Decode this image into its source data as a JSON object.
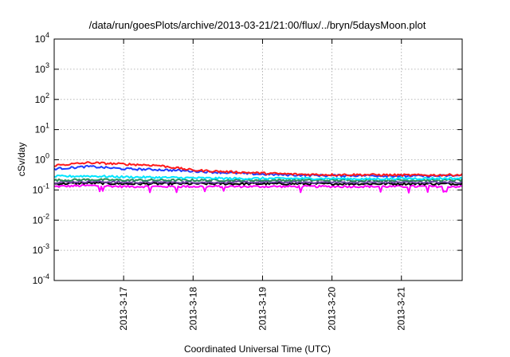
{
  "chart_data": {
    "type": "line",
    "title": "/data/run/goesPlots/archive/2013-03-21/21:00/flux/../bryn/5daysMoon.plot",
    "xlabel": "Coordinated Universal Time (UTC)",
    "ylabel": "cSv/day",
    "yscale": "log",
    "ylim": [
      0.0001,
      10000
    ],
    "xlim": [
      "2013-03-16 00:00",
      "2013-03-21 21:00"
    ],
    "y_ticks": [
      {
        "base": "10",
        "exp": "4",
        "value": 10000
      },
      {
        "base": "10",
        "exp": "3",
        "value": 1000
      },
      {
        "base": "10",
        "exp": "2",
        "value": 100
      },
      {
        "base": "10",
        "exp": "1",
        "value": 10
      },
      {
        "base": "10",
        "exp": "0",
        "value": 1
      },
      {
        "base": "10",
        "exp": "-1",
        "value": 0.1
      },
      {
        "base": "10",
        "exp": "-2",
        "value": 0.01
      },
      {
        "base": "10",
        "exp": "-3",
        "value": 0.001
      },
      {
        "base": "10",
        "exp": "-4",
        "value": 0.0001
      }
    ],
    "x_ticks": [
      {
        "label": "2013-3-17",
        "date": "2013-03-17"
      },
      {
        "label": "2013-3-18",
        "date": "2013-03-18"
      },
      {
        "label": "2013-3-19",
        "date": "2013-03-19"
      },
      {
        "label": "2013-3-20",
        "date": "2013-03-20"
      },
      {
        "label": "2013-3-21",
        "date": "2013-03-21"
      }
    ],
    "grid": true,
    "legend": "none",
    "series": [
      {
        "color": "#ff00ff",
        "x": [
          "2013-03-16 00:00",
          "2013-03-16 12:00",
          "2013-03-17 00:00",
          "2013-03-17 12:00",
          "2013-03-18 00:00",
          "2013-03-18 12:00",
          "2013-03-19 00:00",
          "2013-03-19 12:00",
          "2013-03-20 00:00",
          "2013-03-20 12:00",
          "2013-03-21 00:00",
          "2013-03-21 12:00",
          "2013-03-21 21:00"
        ],
        "y": [
          0.13,
          0.14,
          0.13,
          0.13,
          0.13,
          0.13,
          0.13,
          0.13,
          0.13,
          0.13,
          0.13,
          0.13,
          0.13
        ]
      },
      {
        "color": "#000000",
        "x": [
          "2013-03-16 00:00",
          "2013-03-16 12:00",
          "2013-03-17 00:00",
          "2013-03-17 12:00",
          "2013-03-18 00:00",
          "2013-03-18 12:00",
          "2013-03-19 00:00",
          "2013-03-19 12:00",
          "2013-03-20 00:00",
          "2013-03-20 12:00",
          "2013-03-21 00:00",
          "2013-03-21 12:00",
          "2013-03-21 21:00"
        ],
        "y": [
          0.16,
          0.17,
          0.16,
          0.16,
          0.16,
          0.16,
          0.16,
          0.16,
          0.16,
          0.16,
          0.16,
          0.16,
          0.16
        ]
      },
      {
        "color": "#6b3fa0",
        "x": [
          "2013-03-16 00:00",
          "2013-03-16 12:00",
          "2013-03-17 00:00",
          "2013-03-17 12:00",
          "2013-03-18 00:00",
          "2013-03-18 12:00",
          "2013-03-19 00:00",
          "2013-03-19 12:00",
          "2013-03-20 00:00",
          "2013-03-20 12:00",
          "2013-03-21 00:00",
          "2013-03-21 12:00",
          "2013-03-21 21:00"
        ],
        "y": [
          0.18,
          0.19,
          0.18,
          0.18,
          0.18,
          0.18,
          0.18,
          0.18,
          0.18,
          0.18,
          0.18,
          0.18,
          0.18
        ]
      },
      {
        "color": "#2e8b57",
        "x": [
          "2013-03-16 00:00",
          "2013-03-16 12:00",
          "2013-03-17 00:00",
          "2013-03-17 12:00",
          "2013-03-18 00:00",
          "2013-03-18 12:00",
          "2013-03-19 00:00",
          "2013-03-19 12:00",
          "2013-03-20 00:00",
          "2013-03-20 12:00",
          "2013-03-21 00:00",
          "2013-03-21 12:00",
          "2013-03-21 21:00"
        ],
        "y": [
          0.21,
          0.22,
          0.21,
          0.21,
          0.21,
          0.21,
          0.21,
          0.21,
          0.21,
          0.21,
          0.21,
          0.21,
          0.21
        ]
      },
      {
        "color": "#00e5ff",
        "x": [
          "2013-03-16 00:00",
          "2013-03-16 12:00",
          "2013-03-17 00:00",
          "2013-03-17 12:00",
          "2013-03-18 00:00",
          "2013-03-18 12:00",
          "2013-03-19 00:00",
          "2013-03-19 12:00",
          "2013-03-20 00:00",
          "2013-03-20 12:00",
          "2013-03-21 00:00",
          "2013-03-21 12:00",
          "2013-03-21 21:00"
        ],
        "y": [
          0.28,
          0.29,
          0.27,
          0.26,
          0.25,
          0.24,
          0.24,
          0.24,
          0.24,
          0.23,
          0.24,
          0.24,
          0.24
        ]
      },
      {
        "color": "#1e3cff",
        "x": [
          "2013-03-16 00:00",
          "2013-03-16 12:00",
          "2013-03-17 00:00",
          "2013-03-17 12:00",
          "2013-03-18 00:00",
          "2013-03-18 12:00",
          "2013-03-19 00:00",
          "2013-03-19 12:00",
          "2013-03-20 00:00",
          "2013-03-20 12:00",
          "2013-03-21 00:00",
          "2013-03-21 12:00",
          "2013-03-21 21:00"
        ],
        "y": [
          0.5,
          0.6,
          0.5,
          0.47,
          0.42,
          0.37,
          0.33,
          0.31,
          0.3,
          0.3,
          0.29,
          0.29,
          0.3
        ]
      },
      {
        "color": "#ff1a1a",
        "x": [
          "2013-03-16 00:00",
          "2013-03-16 12:00",
          "2013-03-17 00:00",
          "2013-03-17 12:00",
          "2013-03-18 00:00",
          "2013-03-18 12:00",
          "2013-03-19 00:00",
          "2013-03-19 12:00",
          "2013-03-20 00:00",
          "2013-03-20 12:00",
          "2013-03-21 00:00",
          "2013-03-21 12:00",
          "2013-03-21 21:00"
        ],
        "y": [
          0.65,
          0.8,
          0.72,
          0.65,
          0.45,
          0.4,
          0.36,
          0.33,
          0.32,
          0.32,
          0.31,
          0.31,
          0.32
        ]
      }
    ]
  }
}
